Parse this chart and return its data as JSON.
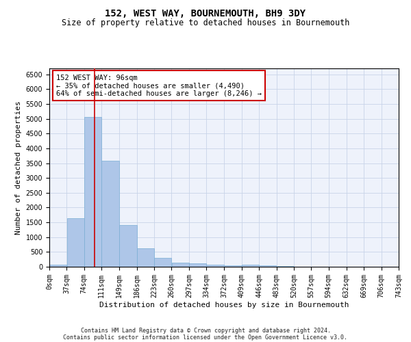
{
  "title": "152, WEST WAY, BOURNEMOUTH, BH9 3DY",
  "subtitle": "Size of property relative to detached houses in Bournemouth",
  "xlabel": "Distribution of detached houses by size in Bournemouth",
  "ylabel": "Number of detached properties",
  "footer_line1": "Contains HM Land Registry data © Crown copyright and database right 2024.",
  "footer_line2": "Contains public sector information licensed under the Open Government Licence v3.0.",
  "bar_edges": [
    0,
    37,
    74,
    111,
    149,
    186,
    223,
    260,
    297,
    334,
    372,
    409,
    446,
    483,
    520,
    557,
    594,
    632,
    669,
    706,
    743
  ],
  "bar_heights": [
    80,
    1650,
    5060,
    3590,
    1410,
    620,
    295,
    145,
    110,
    75,
    55,
    65,
    55,
    20,
    10,
    10,
    5,
    5,
    5,
    5
  ],
  "bar_color": "#aec6e8",
  "bar_edge_color": "#7aaed4",
  "grid_color": "#c8d4e8",
  "vline_x": 96,
  "vline_color": "#cc0000",
  "annotation_text_line1": "152 WEST WAY: 96sqm",
  "annotation_text_line2": "← 35% of detached houses are smaller (4,490)",
  "annotation_text_line3": "64% of semi-detached houses are larger (8,246) →",
  "annotation_fontsize": 7.5,
  "ylim": [
    0,
    6700
  ],
  "xlim": [
    0,
    743
  ],
  "title_fontsize": 10,
  "subtitle_fontsize": 8.5,
  "xlabel_fontsize": 8,
  "ylabel_fontsize": 8,
  "tick_fontsize": 7,
  "footer_fontsize": 6,
  "background_color": "#eef2fb"
}
